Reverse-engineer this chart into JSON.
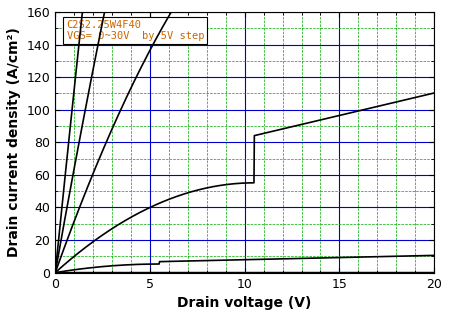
{
  "title": "",
  "xlabel": "Drain voltage (V)",
  "ylabel": "Drain current density (A/cm²)",
  "xlim": [
    0,
    20
  ],
  "ylim": [
    0,
    160
  ],
  "xticks": [
    0,
    5,
    10,
    15,
    20
  ],
  "yticks": [
    0,
    20,
    40,
    60,
    80,
    100,
    120,
    140,
    160
  ],
  "annotation_line1": "C2S2.25W4F40",
  "annotation_line2": "VGS= 0~30V  by 5V step",
  "annotation_color": "#CC6600",
  "curve_color": "black",
  "major_grid_color": "#0000CC",
  "minor_grid_color": "#00AA00",
  "vgs_values": [
    0,
    5,
    10,
    15,
    20,
    25,
    30
  ],
  "figsize": [
    4.49,
    3.17
  ],
  "dpi": 100,
  "vth": 4.5,
  "lambda_": 0.05,
  "kp_vals": [
    0,
    0.08,
    0.35,
    1.0,
    2.1,
    3.2,
    4.5
  ]
}
